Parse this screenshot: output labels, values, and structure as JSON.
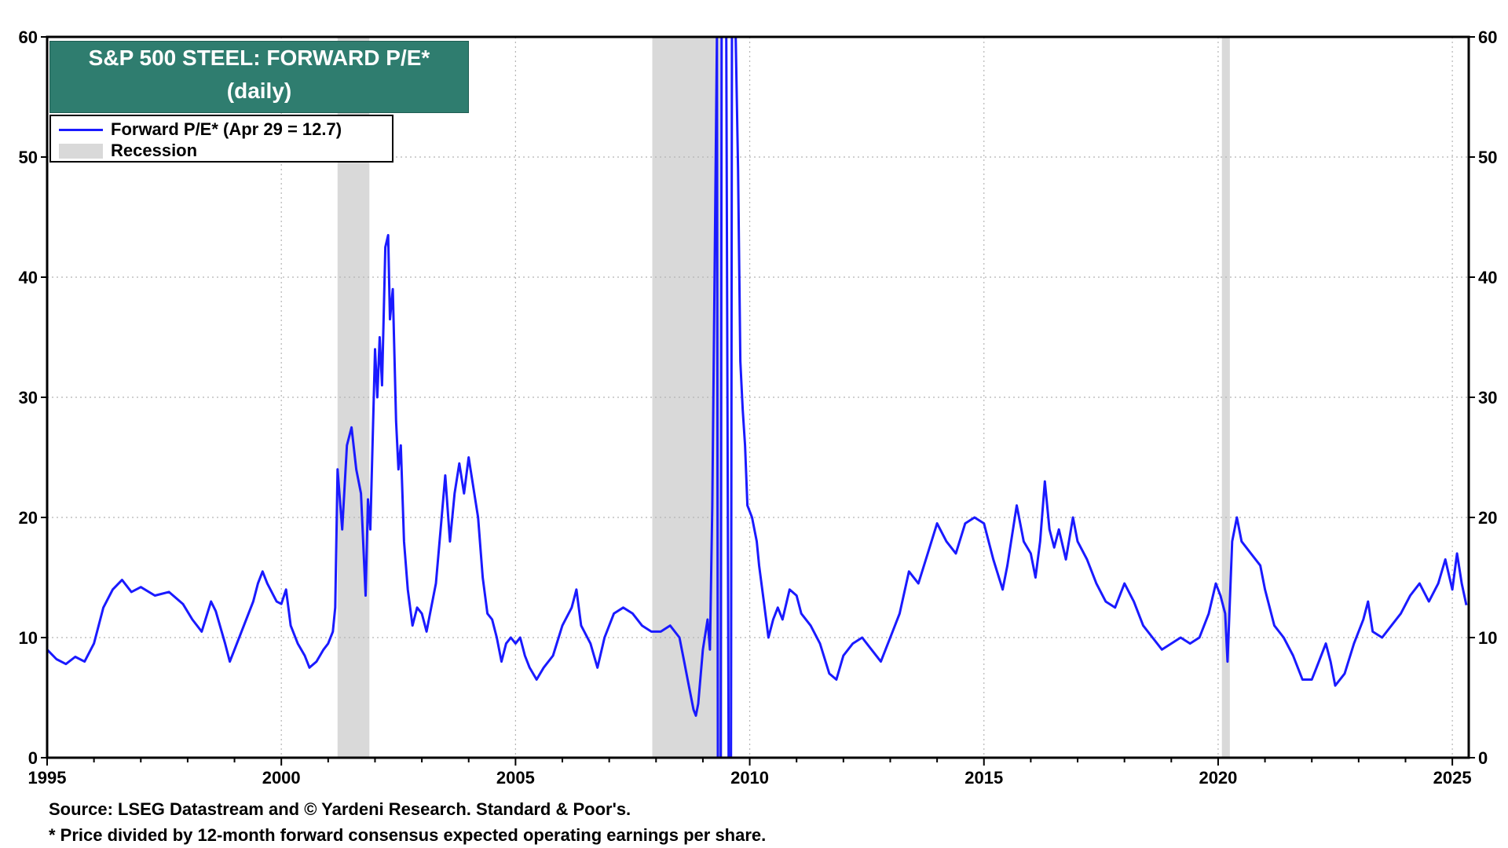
{
  "chart_data": {
    "type": "line",
    "title": "S&P 500 STEEL: FORWARD P/E*",
    "subtitle": "(daily)",
    "xlim": [
      1995.0,
      2025.35
    ],
    "ylim": [
      0,
      60
    ],
    "x_ticks": [
      "1995",
      "2000",
      "2005",
      "2010",
      "2015",
      "2020",
      "2025"
    ],
    "y_ticks": [
      "0",
      "10",
      "20",
      "30",
      "40",
      "50",
      "60"
    ],
    "grid": true,
    "legend_placement": "top-left",
    "colors": {
      "line": "#1a1aff",
      "recession": "#d9d9d9",
      "title_bg": "#2f7d6f"
    },
    "recessions": [
      [
        2001.2,
        2001.88
      ],
      [
        2007.92,
        2009.42
      ],
      [
        2020.08,
        2020.25
      ]
    ],
    "series": [
      {
        "name": "Forward P/E* (Apr 29 = 12.7)",
        "points": [
          [
            1995.0,
            9.0
          ],
          [
            1995.2,
            8.2
          ],
          [
            1995.4,
            7.8
          ],
          [
            1995.6,
            8.4
          ],
          [
            1995.8,
            8.0
          ],
          [
            1996.0,
            9.5
          ],
          [
            1996.2,
            12.5
          ],
          [
            1996.4,
            14.0
          ],
          [
            1996.6,
            14.8
          ],
          [
            1996.8,
            13.8
          ],
          [
            1997.0,
            14.2
          ],
          [
            1997.3,
            13.5
          ],
          [
            1997.6,
            13.8
          ],
          [
            1997.9,
            12.8
          ],
          [
            1998.1,
            11.5
          ],
          [
            1998.3,
            10.5
          ],
          [
            1998.5,
            13.0
          ],
          [
            1998.6,
            12.2
          ],
          [
            1998.8,
            9.5
          ],
          [
            1998.9,
            8.0
          ],
          [
            1999.0,
            9.0
          ],
          [
            1999.2,
            11.0
          ],
          [
            1999.4,
            13.0
          ],
          [
            1999.5,
            14.5
          ],
          [
            1999.6,
            15.5
          ],
          [
            1999.7,
            14.5
          ],
          [
            1999.9,
            13.0
          ],
          [
            2000.0,
            12.8
          ],
          [
            2000.1,
            14.0
          ],
          [
            2000.2,
            11.0
          ],
          [
            2000.35,
            9.5
          ],
          [
            2000.5,
            8.5
          ],
          [
            2000.6,
            7.5
          ],
          [
            2000.75,
            8.0
          ],
          [
            2000.9,
            9.0
          ],
          [
            2001.0,
            9.5
          ],
          [
            2001.1,
            10.5
          ],
          [
            2001.15,
            12.5
          ],
          [
            2001.2,
            24.0
          ],
          [
            2001.3,
            19.0
          ],
          [
            2001.4,
            26.0
          ],
          [
            2001.5,
            27.5
          ],
          [
            2001.6,
            24.0
          ],
          [
            2001.7,
            22.0
          ],
          [
            2001.8,
            13.5
          ],
          [
            2001.85,
            21.5
          ],
          [
            2001.9,
            19.0
          ],
          [
            2002.0,
            34.0
          ],
          [
            2002.05,
            30.0
          ],
          [
            2002.1,
            35.0
          ],
          [
            2002.15,
            31.0
          ],
          [
            2002.22,
            42.5
          ],
          [
            2002.28,
            43.5
          ],
          [
            2002.32,
            36.5
          ],
          [
            2002.38,
            39.0
          ],
          [
            2002.45,
            28.0
          ],
          [
            2002.5,
            24.0
          ],
          [
            2002.55,
            26.0
          ],
          [
            2002.62,
            18.0
          ],
          [
            2002.7,
            14.0
          ],
          [
            2002.8,
            11.0
          ],
          [
            2002.9,
            12.5
          ],
          [
            2003.0,
            12.0
          ],
          [
            2003.1,
            10.5
          ],
          [
            2003.2,
            12.5
          ],
          [
            2003.3,
            14.5
          ],
          [
            2003.4,
            19.0
          ],
          [
            2003.5,
            23.5
          ],
          [
            2003.6,
            18.0
          ],
          [
            2003.7,
            22.0
          ],
          [
            2003.8,
            24.5
          ],
          [
            2003.9,
            22.0
          ],
          [
            2004.0,
            25.0
          ],
          [
            2004.1,
            22.5
          ],
          [
            2004.2,
            20.0
          ],
          [
            2004.3,
            15.0
          ],
          [
            2004.4,
            12.0
          ],
          [
            2004.5,
            11.5
          ],
          [
            2004.6,
            10.0
          ],
          [
            2004.7,
            8.0
          ],
          [
            2004.8,
            9.5
          ],
          [
            2004.9,
            10.0
          ],
          [
            2005.0,
            9.5
          ],
          [
            2005.1,
            10.0
          ],
          [
            2005.2,
            8.5
          ],
          [
            2005.3,
            7.5
          ],
          [
            2005.45,
            6.5
          ],
          [
            2005.6,
            7.5
          ],
          [
            2005.8,
            8.5
          ],
          [
            2006.0,
            11.0
          ],
          [
            2006.2,
            12.5
          ],
          [
            2006.3,
            14.0
          ],
          [
            2006.4,
            11.0
          ],
          [
            2006.6,
            9.5
          ],
          [
            2006.75,
            7.5
          ],
          [
            2006.9,
            10.0
          ],
          [
            2007.1,
            12.0
          ],
          [
            2007.3,
            12.5
          ],
          [
            2007.5,
            12.0
          ],
          [
            2007.7,
            11.0
          ],
          [
            2007.9,
            10.5
          ],
          [
            2008.1,
            10.5
          ],
          [
            2008.3,
            11.0
          ],
          [
            2008.5,
            10.0
          ],
          [
            2008.6,
            8.0
          ],
          [
            2008.7,
            6.0
          ],
          [
            2008.8,
            4.0
          ],
          [
            2008.85,
            3.5
          ],
          [
            2008.9,
            4.5
          ],
          [
            2009.0,
            9.0
          ],
          [
            2009.1,
            11.5
          ],
          [
            2009.15,
            9.0
          ],
          [
            2009.2,
            21.0
          ],
          [
            2009.25,
            40.0
          ],
          [
            2009.3,
            60.0
          ],
          [
            2009.32,
            0.0
          ],
          [
            2009.38,
            0.0
          ],
          [
            2009.4,
            60.0
          ],
          [
            2009.5,
            60.0
          ],
          [
            2009.55,
            0.0
          ],
          [
            2009.6,
            0.0
          ],
          [
            2009.62,
            60.0
          ],
          [
            2009.7,
            60.0
          ],
          [
            2009.75,
            49.0
          ],
          [
            2009.8,
            33.0
          ],
          [
            2009.85,
            29.0
          ],
          [
            2009.9,
            26.0
          ],
          [
            2009.95,
            21.0
          ],
          [
            2010.05,
            20.0
          ],
          [
            2010.15,
            18.0
          ],
          [
            2010.2,
            16.0
          ],
          [
            2010.3,
            13.0
          ],
          [
            2010.4,
            10.0
          ],
          [
            2010.5,
            11.5
          ],
          [
            2010.6,
            12.5
          ],
          [
            2010.7,
            11.5
          ],
          [
            2010.85,
            14.0
          ],
          [
            2011.0,
            13.5
          ],
          [
            2011.1,
            12.0
          ],
          [
            2011.3,
            11.0
          ],
          [
            2011.5,
            9.5
          ],
          [
            2011.7,
            7.0
          ],
          [
            2011.85,
            6.5
          ],
          [
            2012.0,
            8.5
          ],
          [
            2012.2,
            9.5
          ],
          [
            2012.4,
            10.0
          ],
          [
            2012.6,
            9.0
          ],
          [
            2012.8,
            8.0
          ],
          [
            2013.0,
            10.0
          ],
          [
            2013.2,
            12.0
          ],
          [
            2013.4,
            15.5
          ],
          [
            2013.6,
            14.5
          ],
          [
            2013.8,
            17.0
          ],
          [
            2014.0,
            19.5
          ],
          [
            2014.2,
            18.0
          ],
          [
            2014.4,
            17.0
          ],
          [
            2014.6,
            19.5
          ],
          [
            2014.8,
            20.0
          ],
          [
            2015.0,
            19.5
          ],
          [
            2015.2,
            16.5
          ],
          [
            2015.4,
            14.0
          ],
          [
            2015.5,
            16.0
          ],
          [
            2015.7,
            21.0
          ],
          [
            2015.85,
            18.0
          ],
          [
            2016.0,
            17.0
          ],
          [
            2016.1,
            15.0
          ],
          [
            2016.2,
            18.0
          ],
          [
            2016.3,
            23.0
          ],
          [
            2016.4,
            19.0
          ],
          [
            2016.5,
            17.5
          ],
          [
            2016.6,
            19.0
          ],
          [
            2016.75,
            16.5
          ],
          [
            2016.9,
            20.0
          ],
          [
            2017.0,
            18.0
          ],
          [
            2017.2,
            16.5
          ],
          [
            2017.4,
            14.5
          ],
          [
            2017.6,
            13.0
          ],
          [
            2017.8,
            12.5
          ],
          [
            2018.0,
            14.5
          ],
          [
            2018.2,
            13.0
          ],
          [
            2018.4,
            11.0
          ],
          [
            2018.6,
            10.0
          ],
          [
            2018.8,
            9.0
          ],
          [
            2019.0,
            9.5
          ],
          [
            2019.2,
            10.0
          ],
          [
            2019.4,
            9.5
          ],
          [
            2019.6,
            10.0
          ],
          [
            2019.8,
            12.0
          ],
          [
            2019.95,
            14.5
          ],
          [
            2020.05,
            13.5
          ],
          [
            2020.15,
            12.0
          ],
          [
            2020.2,
            8.0
          ],
          [
            2020.3,
            18.0
          ],
          [
            2020.4,
            20.0
          ],
          [
            2020.5,
            18.0
          ],
          [
            2020.7,
            17.0
          ],
          [
            2020.9,
            16.0
          ],
          [
            2021.0,
            14.0
          ],
          [
            2021.2,
            11.0
          ],
          [
            2021.4,
            10.0
          ],
          [
            2021.6,
            8.5
          ],
          [
            2021.8,
            6.5
          ],
          [
            2022.0,
            6.5
          ],
          [
            2022.1,
            7.5
          ],
          [
            2022.3,
            9.5
          ],
          [
            2022.4,
            8.0
          ],
          [
            2022.5,
            6.0
          ],
          [
            2022.7,
            7.0
          ],
          [
            2022.9,
            9.5
          ],
          [
            2023.1,
            11.5
          ],
          [
            2023.2,
            13.0
          ],
          [
            2023.3,
            10.5
          ],
          [
            2023.5,
            10.0
          ],
          [
            2023.7,
            11.0
          ],
          [
            2023.9,
            12.0
          ],
          [
            2024.1,
            13.5
          ],
          [
            2024.3,
            14.5
          ],
          [
            2024.5,
            13.0
          ],
          [
            2024.7,
            14.5
          ],
          [
            2024.85,
            16.5
          ],
          [
            2025.0,
            14.0
          ],
          [
            2025.1,
            17.0
          ],
          [
            2025.2,
            14.5
          ],
          [
            2025.3,
            12.7
          ]
        ]
      }
    ]
  },
  "legend": {
    "line_label": "Forward P/E* (Apr 29 = 12.7)",
    "recession_label": "Recession"
  },
  "footnotes": {
    "source": "Source: LSEG Datastream and © Yardeni Research. Standard & Poor's.",
    "note": "* Price divided by 12-month forward consensus expected operating earnings per share."
  }
}
